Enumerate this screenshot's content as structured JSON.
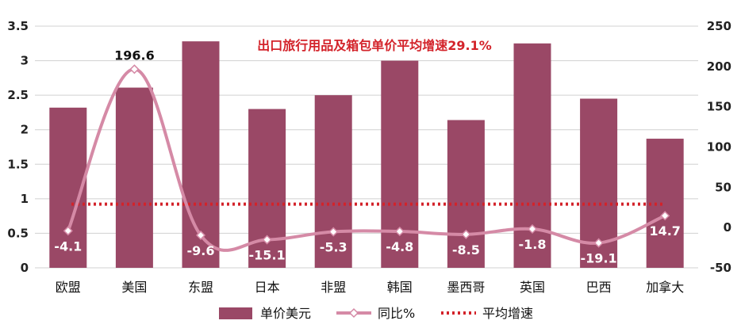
{
  "chart_data": {
    "type": "bar",
    "categories": [
      "欧盟",
      "美国",
      "东盟",
      "日本",
      "非盟",
      "韩国",
      "墨西哥",
      "英国",
      "巴西",
      "加拿大"
    ],
    "series": [
      {
        "name": "单价美元",
        "type": "bar",
        "axis": "left",
        "values": [
          2.32,
          2.61,
          3.28,
          2.3,
          2.5,
          3.0,
          2.14,
          3.25,
          2.45,
          1.87
        ]
      },
      {
        "name": "同比%",
        "type": "line",
        "axis": "right",
        "values": [
          -4.1,
          196.6,
          -9.6,
          -15.1,
          -5.3,
          -4.8,
          -8.5,
          -1.8,
          -19.1,
          14.7
        ],
        "labels": [
          "-4.1",
          "196.6",
          "-9.6",
          "-15.1",
          "-5.3",
          "-4.8",
          "-8.5",
          "-1.8",
          "-19.1",
          "14.7"
        ]
      },
      {
        "name": "平均增速",
        "type": "line",
        "axis": "right",
        "values": [
          29.1,
          29.1,
          29.1,
          29.1,
          29.1,
          29.1,
          29.1,
          29.1,
          29.1,
          29.1
        ]
      }
    ],
    "annotation": "出口旅行用品及箱包单价平均增速29.1%",
    "y_left": {
      "min": 0,
      "max": 3.5,
      "ticks": [
        "0",
        "0.5",
        "1",
        "1.5",
        "2",
        "2.5",
        "3",
        "3.5"
      ]
    },
    "y_right": {
      "min": -50,
      "max": 250,
      "ticks": [
        "-50",
        "0",
        "50",
        "100",
        "150",
        "200",
        "250"
      ]
    },
    "grid": true,
    "legend_position": "bottom",
    "colors": {
      "bar": "#9a4866",
      "line": "#d58aa6",
      "marker_fill": "#ffffff",
      "avg": "#d3232a",
      "label_light": "#ffffff",
      "label_dark": "#111111",
      "grid": "#d0d0d0"
    }
  }
}
